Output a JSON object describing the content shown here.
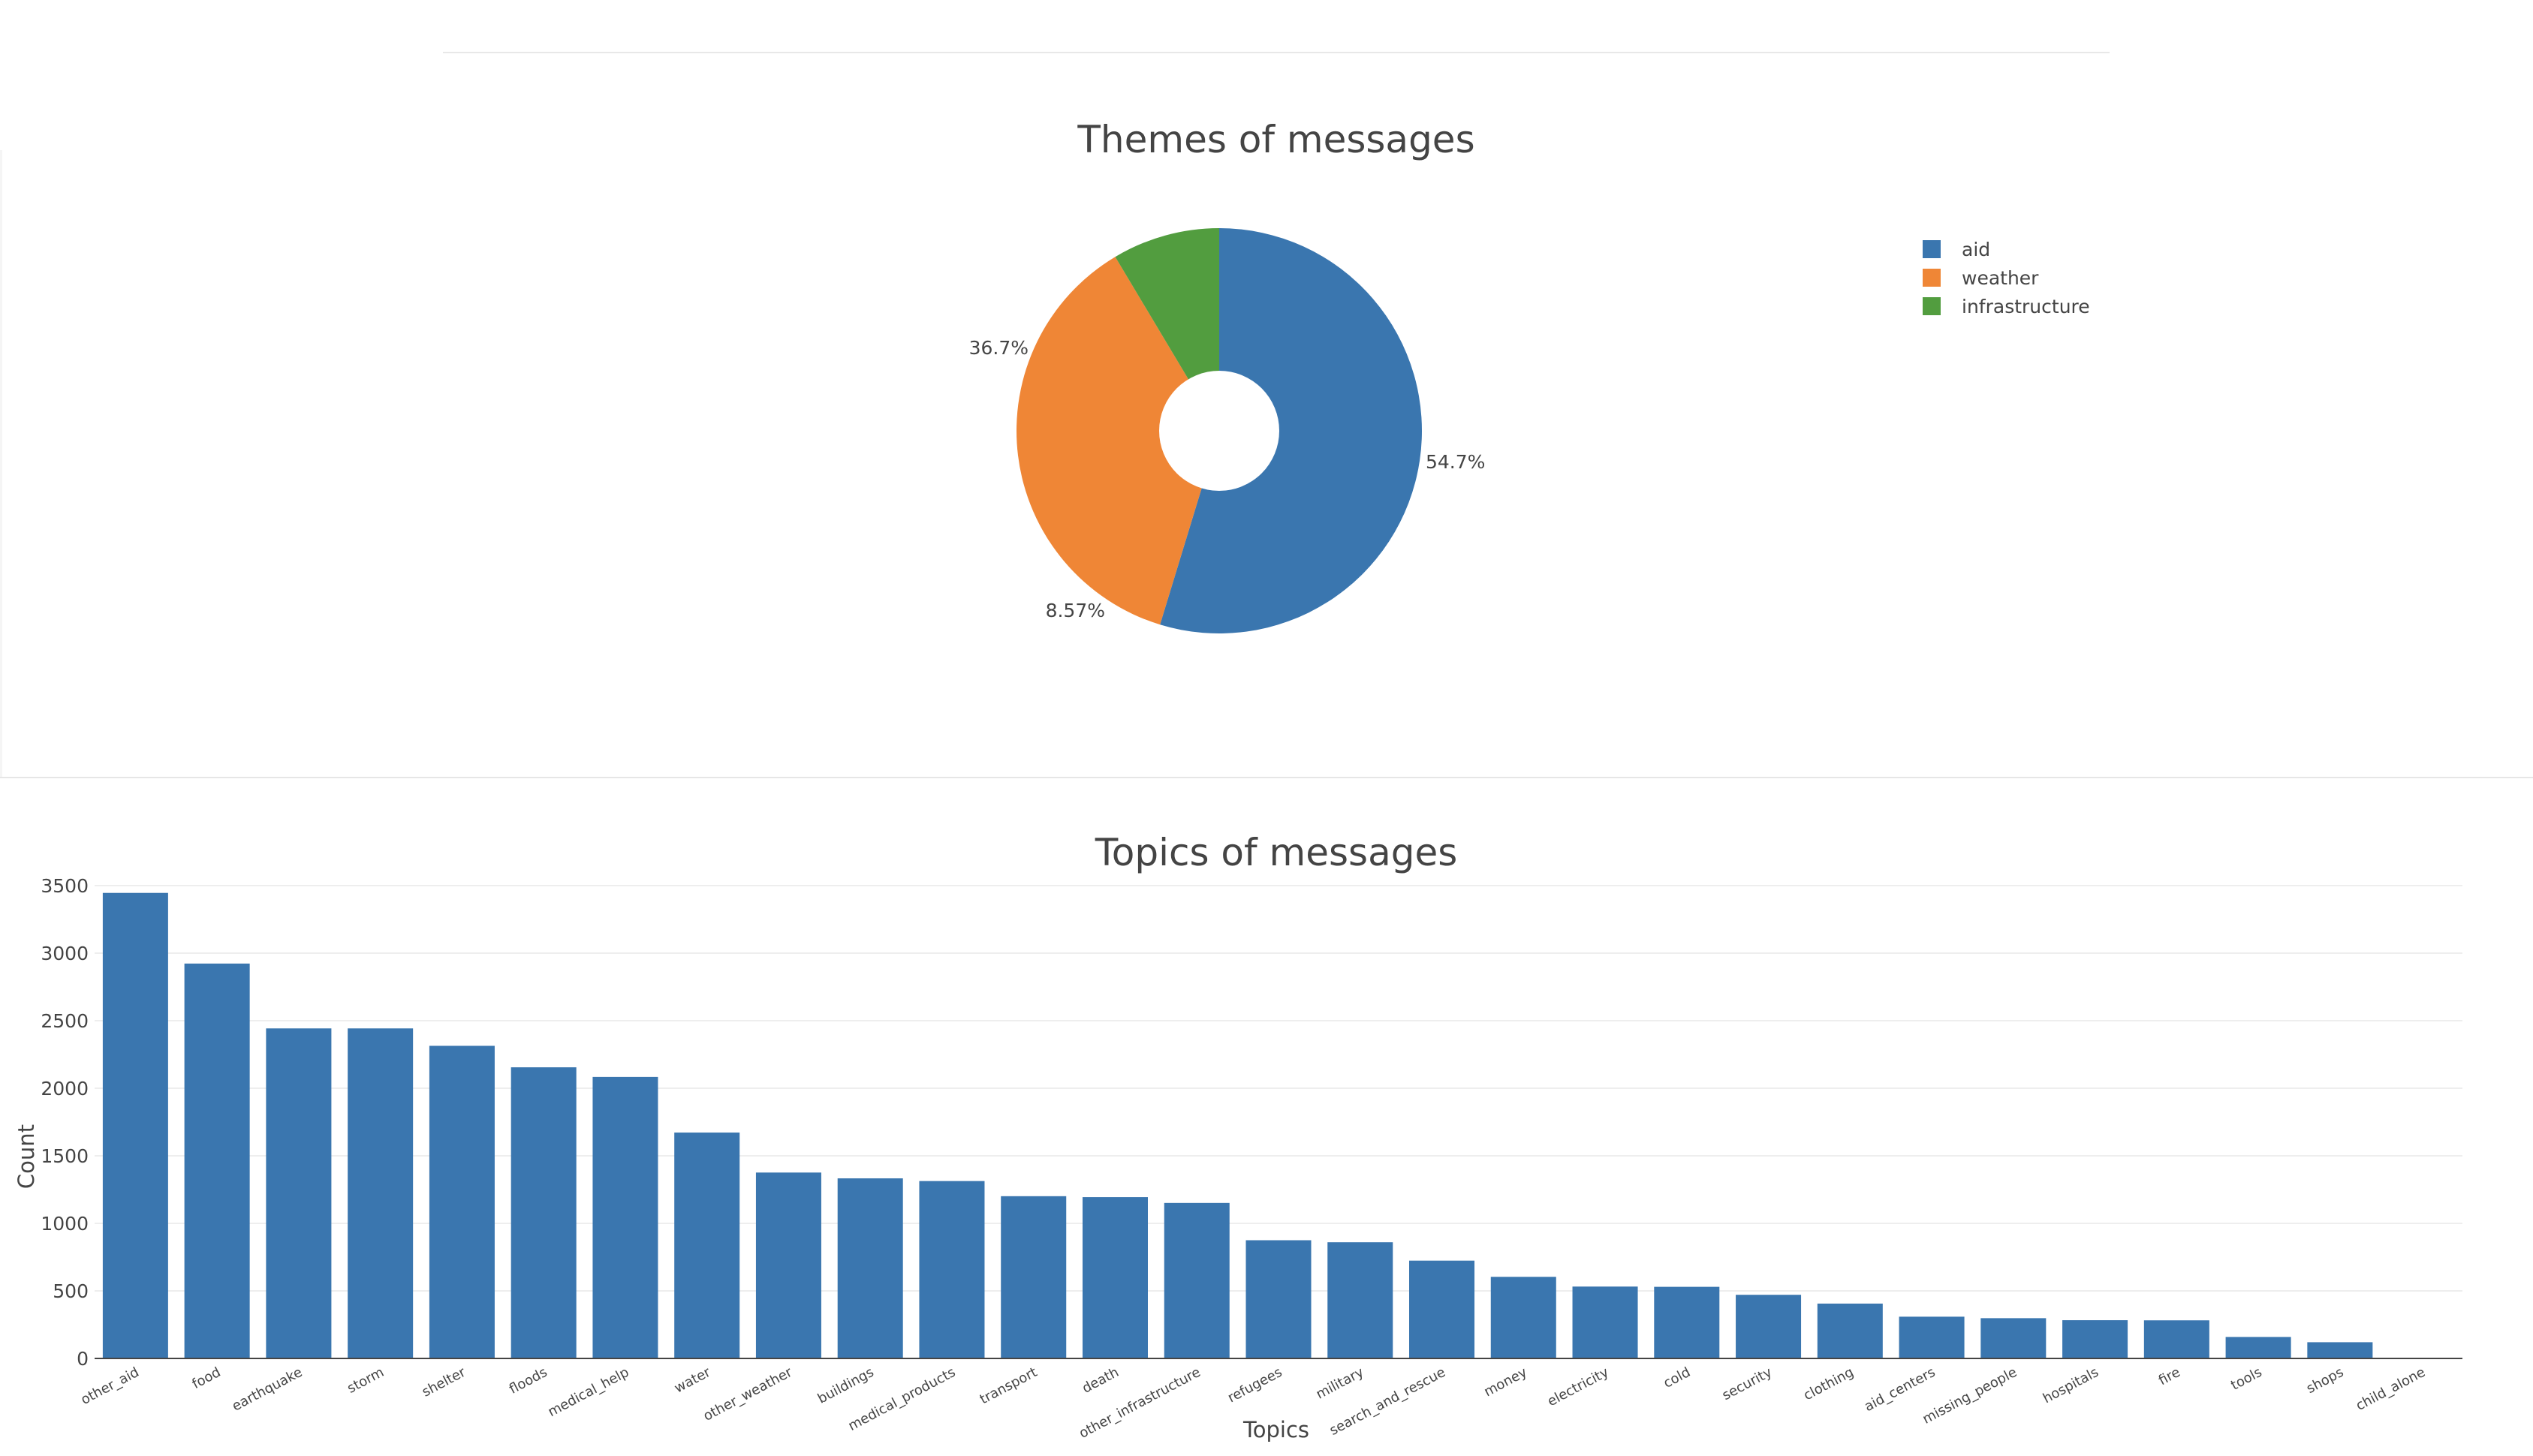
{
  "colors": {
    "aid": "#3a76af",
    "weather": "#ef8636",
    "infrastructure": "#529d3f",
    "bar": "#3a76af"
  },
  "chart_data": [
    {
      "type": "pie",
      "title": "Themes of messages",
      "hole": true,
      "labels": [
        "aid",
        "weather",
        "infrastructure"
      ],
      "values": [
        54.7,
        36.7,
        8.57
      ],
      "text_labels": [
        "54.7%",
        "36.7%",
        "8.57%"
      ],
      "legend": "top-right"
    },
    {
      "type": "bar",
      "title": "Topics of messages",
      "xlabel": "Topics",
      "ylabel": "Count",
      "ylim": [
        0,
        3600
      ],
      "yticks": [
        0,
        500,
        1000,
        1500,
        2000,
        2500,
        3000,
        3500
      ],
      "grid": true,
      "categories": [
        "other_aid",
        "food",
        "earthquake",
        "storm",
        "shelter",
        "floods",
        "medical_help",
        "water",
        "other_weather",
        "buildings",
        "medical_products",
        "transport",
        "death",
        "other_infrastructure",
        "refugees",
        "military",
        "search_and_rescue",
        "money",
        "electricity",
        "cold",
        "security",
        "clothing",
        "aid_centers",
        "missing_people",
        "hospitals",
        "fire",
        "tools",
        "shops",
        "child_alone"
      ],
      "values": [
        3446,
        2923,
        2443,
        2443,
        2314,
        2155,
        2084,
        1672,
        1376,
        1333,
        1313,
        1201,
        1194,
        1151,
        875,
        860,
        724,
        604,
        532,
        530,
        471,
        406,
        309,
        298,
        283,
        282,
        159,
        120,
        0
      ]
    }
  ]
}
